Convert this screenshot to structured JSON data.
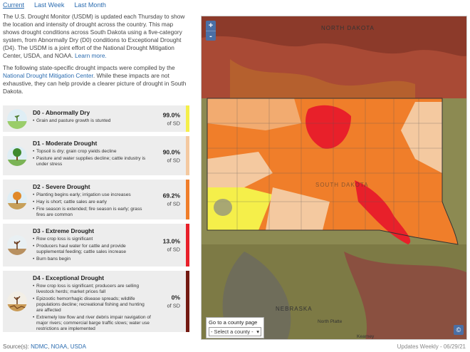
{
  "tabs": [
    {
      "label": "Current",
      "active": true
    },
    {
      "label": "Last Week",
      "active": false
    },
    {
      "label": "Last Month",
      "active": false
    }
  ],
  "intro": {
    "p1": "The U.S. Drought Monitor (USDM) is updated each Thursday to show the location and intensity of drought across the country. This map shows drought conditions across South Dakota using a five-category system, from Abnormally Dry (D0) conditions to Exceptional Drought (D4). The USDM is a joint effort of the National Drought Mitigation Center, USDA, and NOAA.",
    "learn_more": "Learn more.",
    "p2_prefix": "The following state-specific drought impacts were compiled by the",
    "ndmc_link": "National Drought Mitigation Center",
    "p2_suffix": ". While these impacts are not exhaustive, they can help provide a clearer picture of drought in South Dakota."
  },
  "categories": [
    {
      "title": "D0 - Abnormally Dry",
      "impacts": [
        "Grain and pasture growth is stunted"
      ],
      "percent": "99.0%",
      "unit": "of SD",
      "color": "#f5ef4a"
    },
    {
      "title": "D1 - Moderate Drought",
      "impacts": [
        "Topsoil is dry; grain crop yields decline",
        "Pasture and water supplies decline; cattle industry is under stress"
      ],
      "percent": "90.0%",
      "unit": "of SD",
      "color": "#f4c9a0"
    },
    {
      "title": "D2 - Severe Drought",
      "impacts": [
        "Planting begins early; irrigation use increases",
        "Hay is short; cattle sales are early",
        "Fire season is extended; fire season is early; grass fires are common"
      ],
      "percent": "69.2%",
      "unit": "of SD",
      "color": "#f07e2a"
    },
    {
      "title": "D3 - Extreme Drought",
      "impacts": [
        "Row crop loss is significant",
        "Producers haul water for cattle and provide supplemental feeding; cattle sales increase",
        "Burn bans begin"
      ],
      "percent": "13.0%",
      "unit": "of SD",
      "color": "#e8202a"
    },
    {
      "title": "D4 - Exceptional Drought",
      "impacts": [
        "Row crop loss is significant; producers are selling livestock herds; market prices fall",
        "Epizootic hemorrhagic disease spreads; wildlife populations decline; recreational fishing and hunting are affected",
        "Extremely low flow and river debris impair navigation of major rivers; commercial barge traffic slows; water use restrictions are implemented"
      ],
      "percent": "0%",
      "unit": "of SD",
      "color": "#731a12"
    }
  ],
  "source": {
    "prefix": "Source(s):",
    "links": [
      "NDMC",
      "NOAA",
      "USDA"
    ]
  },
  "updated": "Updates Weekly - 06/29/21",
  "map": {
    "zoom_in": "+",
    "zoom_out": "-",
    "labels": {
      "north_dakota": "NORTH DAKOTA",
      "south_dakota": "SOUTH DAKOTA",
      "nebraska": "NEBRASKA",
      "north_platte": "North Platte",
      "kearney": "Kearney"
    },
    "county_box_title": "Go to a county page",
    "county_select_placeholder": "- Select a county -",
    "copyright_symbol": "©"
  }
}
